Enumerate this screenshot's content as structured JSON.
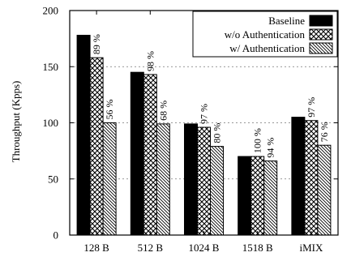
{
  "chart_data": {
    "type": "bar",
    "title": "",
    "xlabel": "",
    "ylabel": "Throughput (Kpps)",
    "ylim": [
      0,
      200
    ],
    "yticks": [
      "0",
      "50",
      "100",
      "150",
      "200"
    ],
    "categories": [
      "128 B",
      "512 B",
      "1024 B",
      "1518 B",
      "iMIX"
    ],
    "grid": "horizontal dashed",
    "legend_position": "top-right",
    "series": [
      {
        "name": "Baseline",
        "pattern": "solid",
        "values": [
          178,
          145,
          99,
          70,
          105
        ],
        "labels": [
          "",
          "",
          "",
          "",
          ""
        ]
      },
      {
        "name": "w/o Authentication",
        "pattern": "crosshatch",
        "values": [
          158,
          143,
          96,
          70,
          102
        ],
        "labels": [
          "89 %",
          "98 %",
          "97 %",
          "100 %",
          "97 %"
        ]
      },
      {
        "name": "w/ Authentication",
        "pattern": "diagonal",
        "values": [
          100,
          99,
          79,
          66,
          80
        ],
        "labels": [
          "56 %",
          "68 %",
          "80 %",
          "94 %",
          "76 %"
        ]
      }
    ]
  }
}
